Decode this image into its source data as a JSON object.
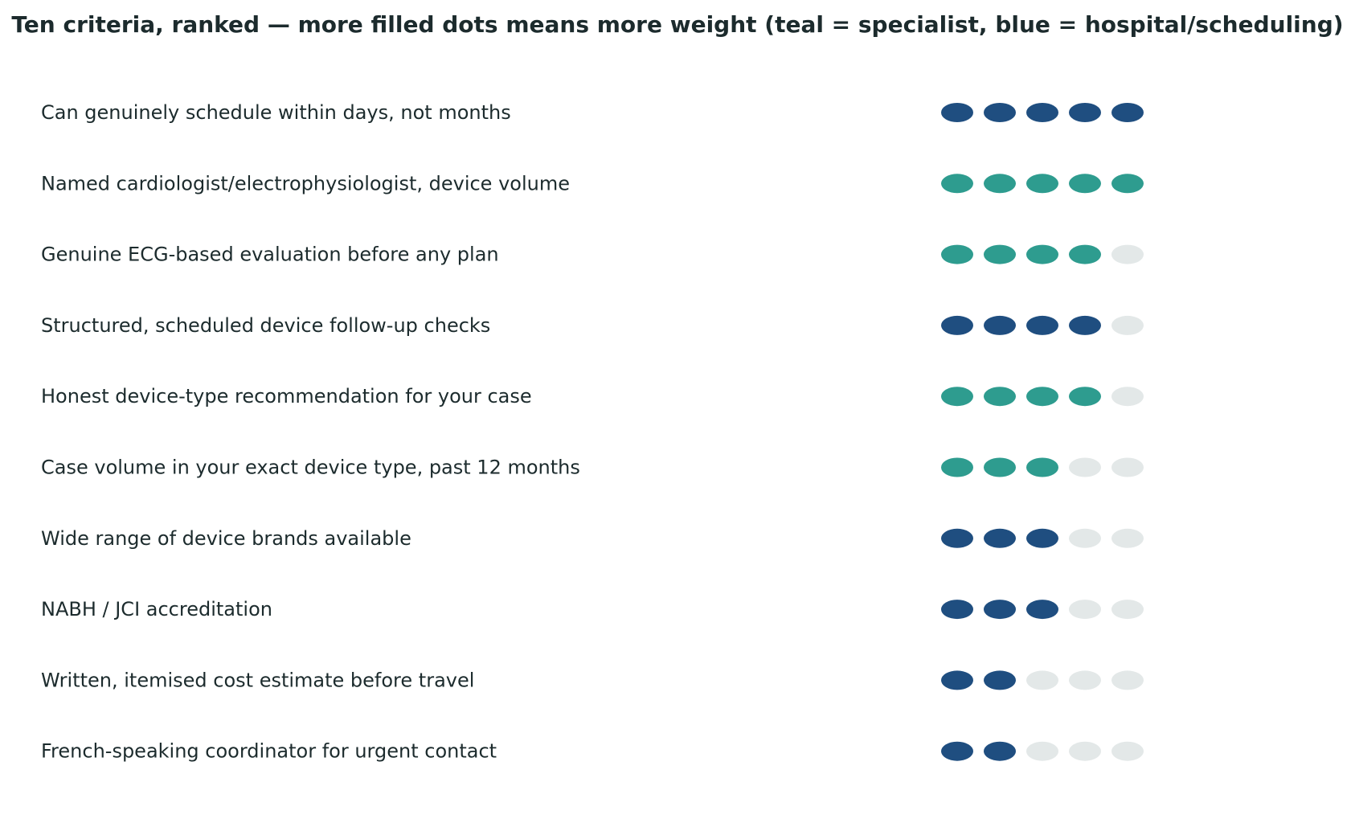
{
  "chart_data": {
    "type": "dot-rating",
    "title": "Ten criteria, ranked — more filled dots means more weight (teal = specialist, blue = hospital/scheduling)",
    "max_dots": 5,
    "colors": {
      "specialist": "#2e9c8f",
      "hospital": "#1f4e80",
      "empty": "#e3e8e8"
    },
    "rows": [
      {
        "label": "Can genuinely schedule within days, not months",
        "value": 5,
        "category": "hospital"
      },
      {
        "label": "Named cardiologist/electrophysiologist, device volume",
        "value": 5,
        "category": "specialist"
      },
      {
        "label": "Genuine ECG-based evaluation before any plan",
        "value": 4,
        "category": "specialist"
      },
      {
        "label": "Structured, scheduled device follow-up checks",
        "value": 4,
        "category": "hospital"
      },
      {
        "label": "Honest device-type recommendation for your case",
        "value": 4,
        "category": "specialist"
      },
      {
        "label": "Case volume in your exact device type, past 12 months",
        "value": 3,
        "category": "specialist"
      },
      {
        "label": "Wide range of device brands available",
        "value": 3,
        "category": "hospital"
      },
      {
        "label": "NABH / JCI accreditation",
        "value": 3,
        "category": "hospital"
      },
      {
        "label": "Written, itemised cost estimate before travel",
        "value": 2,
        "category": "hospital"
      },
      {
        "label": "French-speaking coordinator for urgent contact",
        "value": 2,
        "category": "hospital"
      }
    ]
  }
}
